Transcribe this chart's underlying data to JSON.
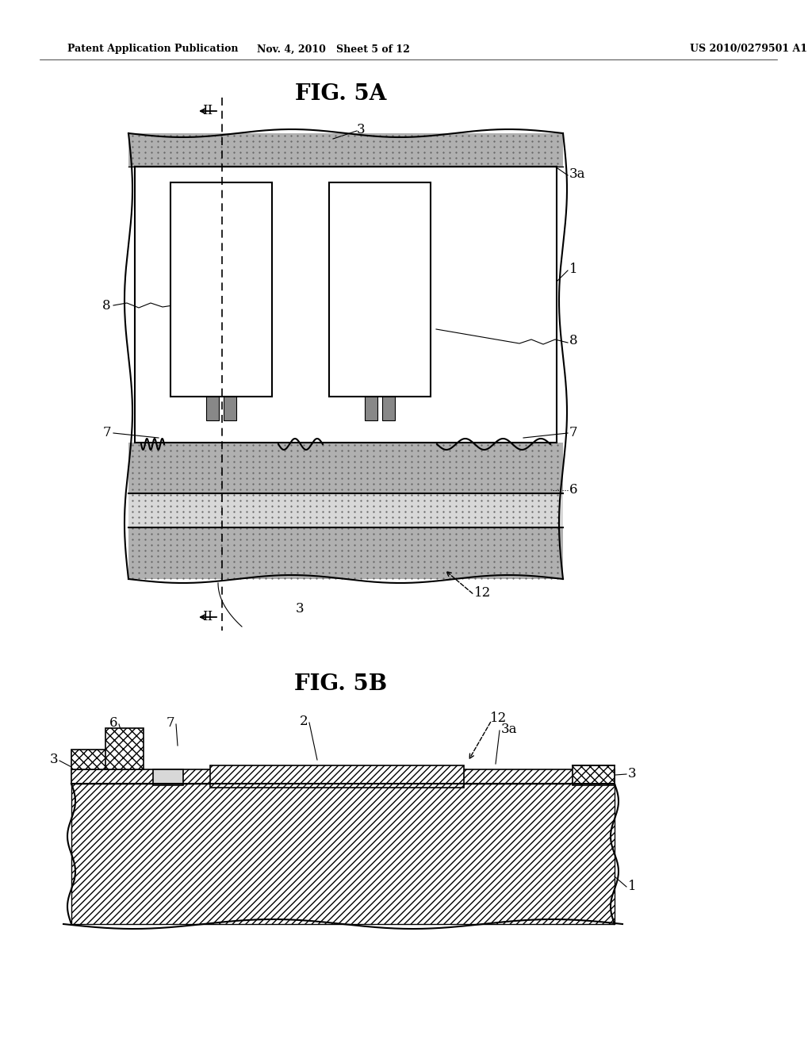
{
  "fig_title_5a": "FIG. 5A",
  "fig_title_5b": "FIG. 5B",
  "header_left": "Patent Application Publication",
  "header_mid": "Nov. 4, 2010   Sheet 5 of 12",
  "header_right": "US 2010/0279501 A1",
  "bg_color": "#ffffff",
  "line_color": "#000000",
  "gray_stipple": "#b0b0b0",
  "white_fill": "#ffffff",
  "light_gray": "#d8d8d8"
}
